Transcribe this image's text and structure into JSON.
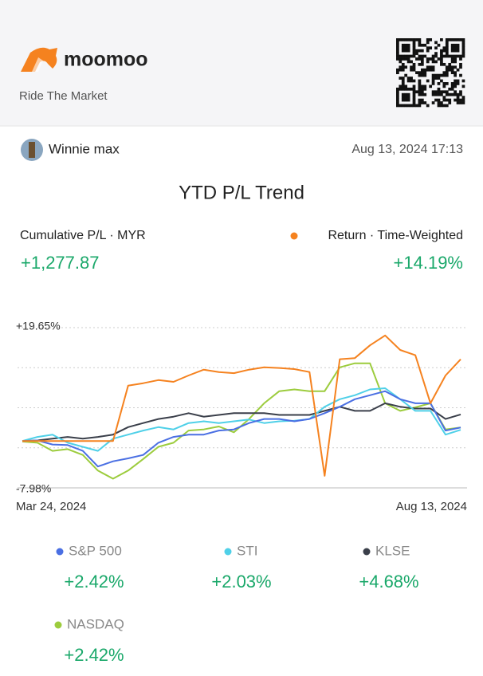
{
  "header": {
    "brand": "moomoo",
    "tagline": "Ride The Market"
  },
  "user": {
    "name": "Winnie max",
    "timestamp": "Aug 13, 2024 17:13"
  },
  "chart_data": {
    "type": "line",
    "title": "YTD P/L Trend",
    "pl_label": "Cumulative P/L · MYR",
    "pl_value": "+1,277.87",
    "categories": [
      "Mar 24, 2024",
      null,
      null,
      null,
      null,
      null,
      null,
      null,
      null,
      null,
      null,
      null,
      null,
      null,
      null,
      null,
      null,
      null,
      null,
      null,
      null,
      null,
      null,
      null,
      null,
      null,
      null,
      null,
      null,
      "Aug 13, 2024"
    ],
    "ylim": [
      -7.98,
      19.65
    ],
    "yticks": [
      {
        "value": 19.65,
        "label": "+19.65%"
      },
      {
        "value": -7.98,
        "label": "-7.98%"
      }
    ],
    "grid": true,
    "series": [
      {
        "name": "Return · Time-Weighted",
        "color": "#f5821f",
        "return_label": "+14.19%",
        "values": [
          0.1,
          0.1,
          0.1,
          0.1,
          0.1,
          0.1,
          0.1,
          9.66,
          10.07,
          10.6,
          10.3,
          11.4,
          12.4,
          12.0,
          11.8,
          12.4,
          12.8,
          12.7,
          12.5,
          12.0,
          -5.9,
          14.2,
          14.4,
          16.6,
          18.3,
          15.8,
          14.9,
          6.6,
          11.4,
          14.19
        ]
      },
      {
        "name": "S&P 500",
        "color": "#4a6fe3",
        "return_label": "+2.42%",
        "values": [
          0.1,
          0.2,
          -0.5,
          -0.6,
          -1.6,
          -4.3,
          -3.4,
          -2.9,
          -2.3,
          -0.2,
          0.8,
          1.2,
          1.2,
          1.9,
          2.1,
          3.2,
          3.9,
          3.9,
          3.5,
          3.9,
          4.9,
          6.0,
          7.3,
          8.0,
          8.7,
          7.3,
          6.6,
          6.6,
          1.9,
          2.42
        ]
      },
      {
        "name": "STI",
        "color": "#4fd0e8",
        "return_label": "+2.03%",
        "values": [
          0.1,
          0.8,
          1.2,
          -0.2,
          -0.9,
          -1.6,
          0.5,
          1.2,
          1.9,
          2.5,
          2.1,
          3.2,
          3.5,
          3.2,
          3.5,
          3.8,
          3.2,
          3.5,
          3.6,
          3.9,
          6.0,
          7.3,
          8.0,
          9.0,
          9.2,
          7.3,
          5.3,
          5.3,
          1.2,
          2.03
        ]
      },
      {
        "name": "KLSE",
        "color": "#3a3f4a",
        "return_label": "+4.68%",
        "values": [
          0.1,
          0.2,
          0.5,
          0.8,
          0.5,
          0.8,
          1.2,
          2.5,
          3.2,
          3.9,
          4.3,
          4.9,
          4.3,
          4.6,
          4.9,
          4.9,
          4.9,
          4.6,
          4.6,
          4.6,
          5.3,
          6.0,
          5.3,
          5.3,
          6.6,
          6.0,
          5.7,
          5.7,
          3.9,
          4.68
        ]
      },
      {
        "name": "NASDAQ",
        "color": "#9ccc3d",
        "return_label": "+2.42%",
        "values": [
          0.0,
          -0.2,
          -1.6,
          -1.3,
          -2.3,
          -5.0,
          -6.4,
          -5.0,
          -3.0,
          -0.9,
          -0.2,
          1.9,
          2.1,
          2.6,
          1.6,
          3.9,
          6.6,
          8.7,
          9.0,
          8.7,
          8.7,
          12.8,
          13.5,
          13.5,
          6.6,
          5.3,
          5.9,
          6.6,
          2.1,
          2.42
        ]
      }
    ]
  }
}
